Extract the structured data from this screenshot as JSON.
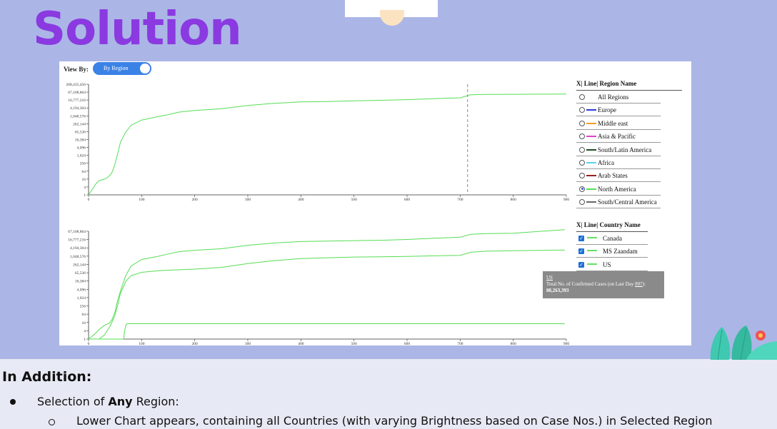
{
  "slide": {
    "title": "Solution",
    "section_heading": "In Addition:",
    "bullet_prefix": "Selection of ",
    "bullet_bold": "Any",
    "bullet_suffix": " Region:",
    "sub_bullet": "Lower Chart appears, containing all Countries (with varying Brightness based on Case Nos.) in Selected Region",
    "colors": {
      "title": "#8a3ae0",
      "background": "#abb6e6",
      "toggle": "#3b82e6",
      "line": "#55dd55"
    }
  },
  "controls": {
    "view_by_label": "View By:",
    "toggle_label": "By Region"
  },
  "region_legend": {
    "title": "X| Line| Region Name",
    "items": [
      {
        "label": "All Regions",
        "color": "",
        "selected": false
      },
      {
        "label": "Europe",
        "color": "#2b3bd6",
        "selected": false
      },
      {
        "label": "Middle east",
        "color": "#f0a020",
        "selected": false
      },
      {
        "label": "Asia & Pacific",
        "color": "#e040d0",
        "selected": false
      },
      {
        "label": "South/Latin America",
        "color": "#1f4d1f",
        "selected": false
      },
      {
        "label": "Africa",
        "color": "#5fd0f0",
        "selected": false
      },
      {
        "label": "Arab States",
        "color": "#9a1f1f",
        "selected": false
      },
      {
        "label": "North America",
        "color": "#55dd55",
        "selected": true
      },
      {
        "label": "South/Central America",
        "color": "#666666",
        "selected": false
      }
    ]
  },
  "country_legend": {
    "title": "X| Line| Country Name",
    "items": [
      {
        "label": "Canada",
        "checked": true
      },
      {
        "label": "MS Zaandam",
        "checked": true
      },
      {
        "label": "US",
        "checked": true
      }
    ]
  },
  "tooltip": {
    "country": "US",
    "line_prefix": "Total No. of Confirmed Cases (on Last Day ",
    "day": "897",
    "line_suffix": "):",
    "value": "88,263,393"
  },
  "chart_data": [
    {
      "type": "line",
      "title": "",
      "x_ticks": [
        "0",
        "100",
        "200",
        "300",
        "400",
        "500",
        "600",
        "700",
        "800",
        "900"
      ],
      "y_ticks": [
        "1",
        "4",
        "16",
        "64",
        "256",
        "1,024",
        "4,096",
        "16,384",
        "65,536",
        "262,144",
        "1,048,576",
        "4,194,304",
        "16,777,216",
        "67,108,864",
        "268,435,456"
      ],
      "xlim": [
        0,
        900
      ],
      "y_scale": "log2",
      "marker_day": 714,
      "series": [
        {
          "color": "#55dd55",
          "x": [
            0,
            5,
            10,
            15,
            20,
            25,
            30,
            35,
            40,
            45,
            50,
            55,
            60,
            70,
            80,
            100,
            130,
            150,
            170,
            200,
            250,
            300,
            350,
            400,
            450,
            500,
            550,
            600,
            650,
            700,
            720,
            750,
            800,
            900
          ],
          "y": [
            1,
            2,
            4,
            8,
            12,
            14,
            16,
            20,
            30,
            60,
            250,
            1500,
            10000,
            60000,
            200000,
            500000,
            900000,
            1300000,
            2000000,
            2700000,
            3600000,
            6500000,
            9500000,
            12000000,
            13000000,
            14500000,
            16000000,
            18000000,
            21000000,
            25000000,
            42000000,
            45000000,
            46000000,
            48000000
          ]
        }
      ]
    },
    {
      "type": "line",
      "title": "",
      "x_ticks": [
        "0",
        "100",
        "200",
        "300",
        "400",
        "500",
        "600",
        "700",
        "800",
        "900"
      ],
      "y_ticks": [
        "1",
        "4",
        "16",
        "64",
        "256",
        "1,024",
        "4,096",
        "16,384",
        "65,536",
        "262,144",
        "1,048,576",
        "4,194,304",
        "16,777,216",
        "67,108,864"
      ],
      "xlim": [
        0,
        900
      ],
      "y_scale": "log2",
      "series": [
        {
          "name": "US",
          "color": "#55dd55",
          "x": [
            0,
            10,
            20,
            30,
            40,
            45,
            50,
            55,
            60,
            70,
            80,
            100,
            130,
            150,
            170,
            200,
            250,
            300,
            350,
            400,
            450,
            500,
            550,
            600,
            650,
            700,
            720,
            750,
            800,
            897
          ],
          "y": [
            1,
            2,
            5,
            10,
            15,
            30,
            100,
            700,
            3000,
            40000,
            200000,
            600000,
            1000000,
            1500000,
            2200000,
            2800000,
            3600000,
            6500000,
            9500000,
            12000000,
            13000000,
            14000000,
            15000000,
            17000000,
            21000000,
            25000000,
            40000000,
            45000000,
            48000000,
            88263393
          ]
        },
        {
          "name": "Canada",
          "color": "#55dd55",
          "x": [
            0,
            20,
            30,
            35,
            40,
            45,
            50,
            55,
            60,
            70,
            80,
            100,
            130,
            150,
            200,
            250,
            300,
            350,
            400,
            450,
            500,
            550,
            600,
            650,
            700,
            720,
            750,
            800,
            897
          ],
          "y": [
            1,
            1,
            2,
            4,
            8,
            20,
            60,
            300,
            2000,
            15000,
            40000,
            70000,
            90000,
            100000,
            120000,
            160000,
            300000,
            500000,
            700000,
            800000,
            900000,
            950000,
            1000000,
            1100000,
            1200000,
            2000000,
            2400000,
            2600000,
            2900000
          ]
        },
        {
          "name": "MS Zaandam",
          "color": "#55dd55",
          "x": [
            0,
            66,
            68,
            70,
            72,
            897
          ],
          "y": [
            1,
            1,
            4,
            9,
            13,
            13
          ]
        }
      ]
    }
  ]
}
